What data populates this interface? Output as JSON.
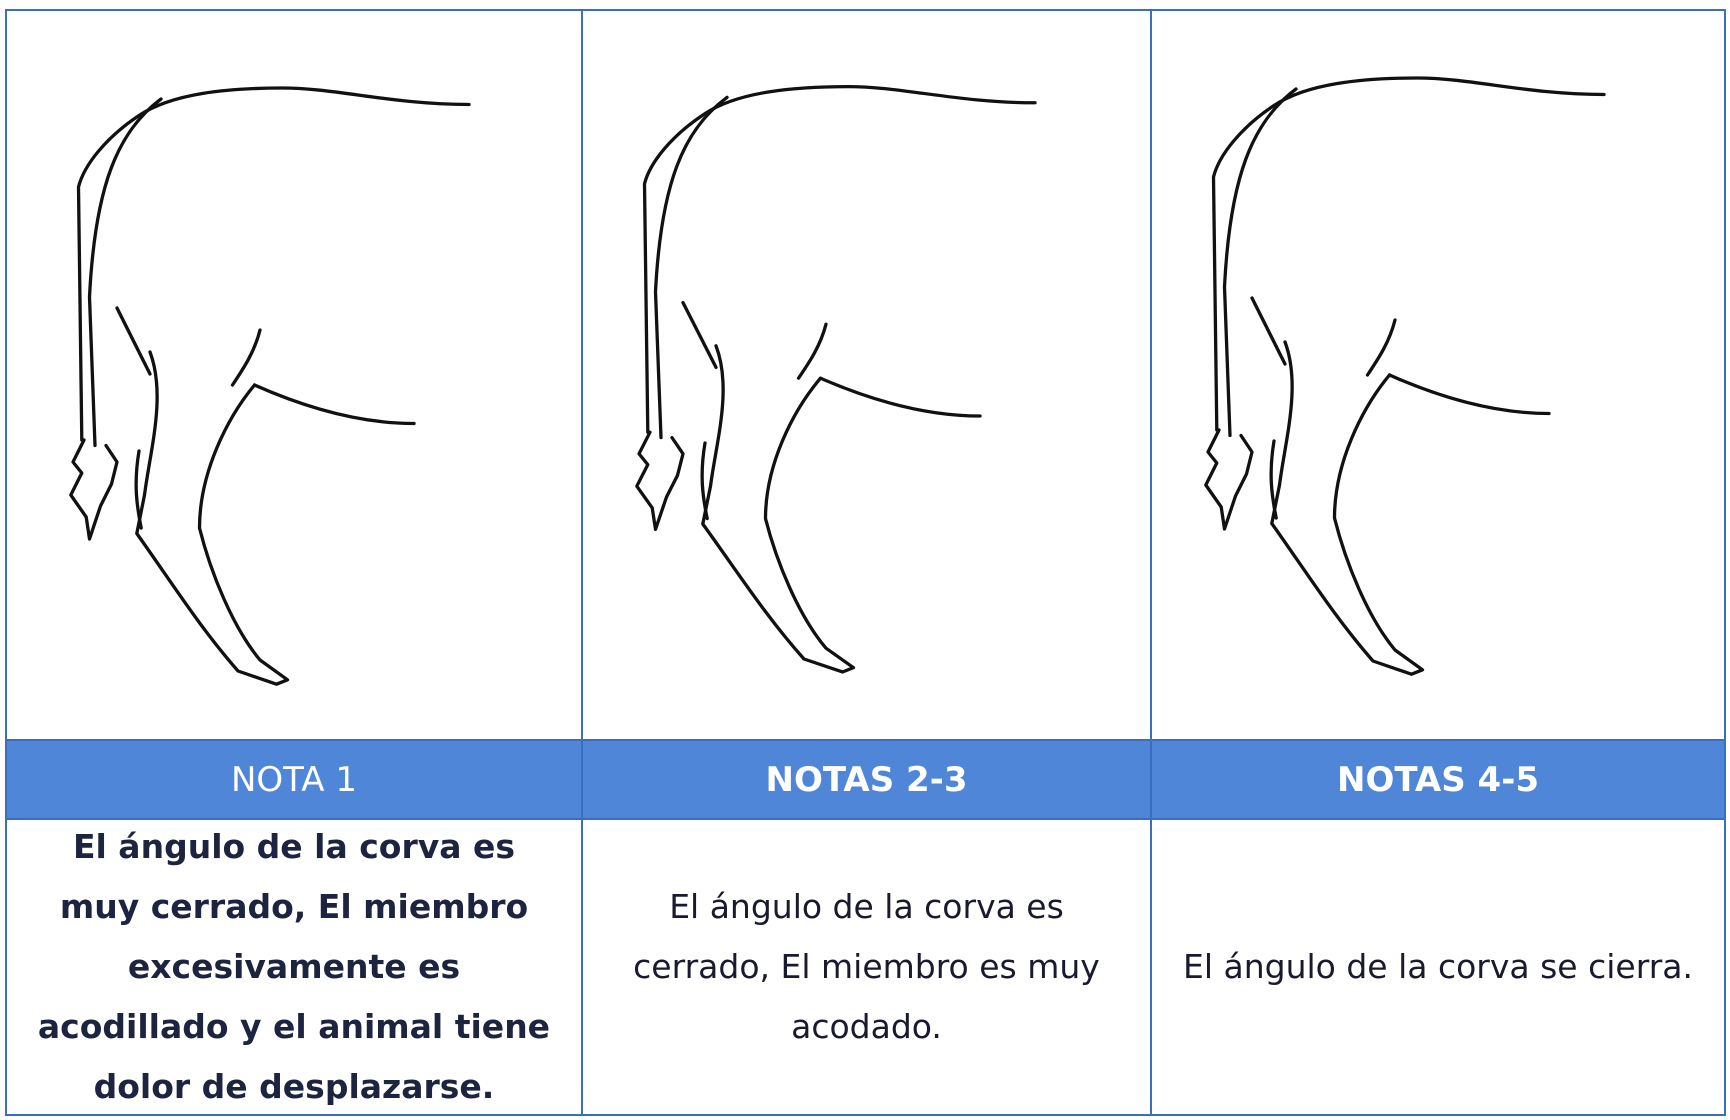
{
  "columns": [
    {
      "heading": "NOTA 1",
      "description": "El ángulo de la corva es muy cerrado, El miembro excesivamente es acodillado y el animal tiene dolor de desplazarse."
    },
    {
      "heading": "NOTAS 2-3",
      "description": "El ángulo de la corva es cerrado, El miembro es muy acodado."
    },
    {
      "heading": "NOTAS 4-5",
      "description": "El ángulo de la corva se cierra."
    }
  ]
}
